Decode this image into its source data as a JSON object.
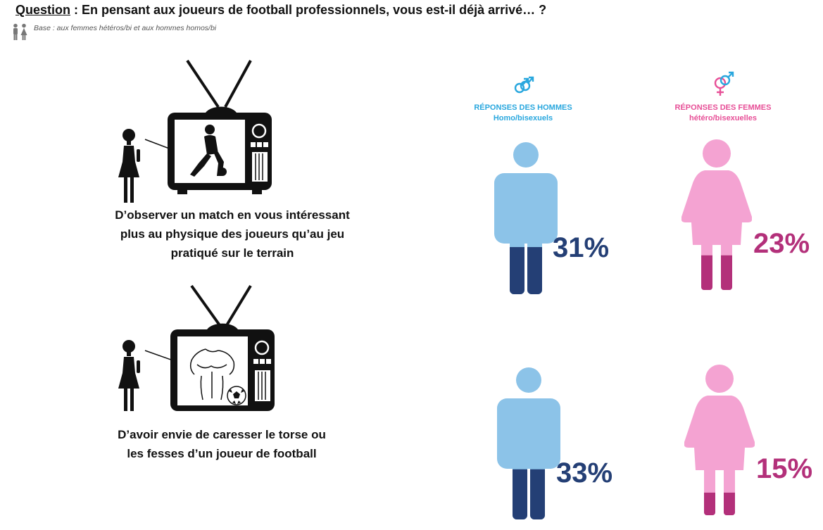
{
  "header": {
    "question_label": "Question",
    "question_text": " : En pensant aux joueurs de football professionnels, vous est-il déjà arrivé… ?",
    "base_text": "Base : aux femmes hétéros/bi et aux hommes homos/bi"
  },
  "groups": {
    "men": {
      "title": "RÉPONSES DES HOMMES",
      "subtitle": "Homo/bisexuels"
    },
    "women": {
      "title": "RÉPONSES DES FEMMES",
      "subtitle": "hétéro/bisexuelles"
    }
  },
  "items": [
    {
      "caption_lines": [
        "D’observer un match en vous intéressant",
        "plus au physique des joueurs qu’au jeu",
        "pratiqué sur le terrain"
      ],
      "men_label": "31%",
      "women_label": "23%"
    },
    {
      "caption_lines": [
        "D’avoir envie de caresser le torse ou",
        "les fesses d’un joueur de football"
      ],
      "men_label": "33%",
      "women_label": "15%"
    }
  ],
  "chart_data": {
    "type": "bar",
    "categories": [
      "D’observer un match en vous intéressant plus au physique des joueurs qu’au jeu pratiqué sur le terrain",
      "D’avoir envie de caresser le torse ou les fesses d’un joueur de football"
    ],
    "series": [
      {
        "name": "RÉPONSES DES HOMMES Homo/bisexuels",
        "values": [
          31,
          33
        ],
        "color": "#243f75"
      },
      {
        "name": "RÉPONSES DES FEMMES hétéro/bisexuelles",
        "values": [
          23,
          15
        ],
        "color": "#b3307a"
      }
    ],
    "ylim": [
      0,
      100
    ]
  },
  "colors": {
    "man_light": "#8cc3e8",
    "man_dark": "#243f75",
    "woman_light": "#f4a3d2",
    "woman_dark": "#b3307a",
    "men_title": "#29a7de",
    "women_title": "#e74f97"
  }
}
